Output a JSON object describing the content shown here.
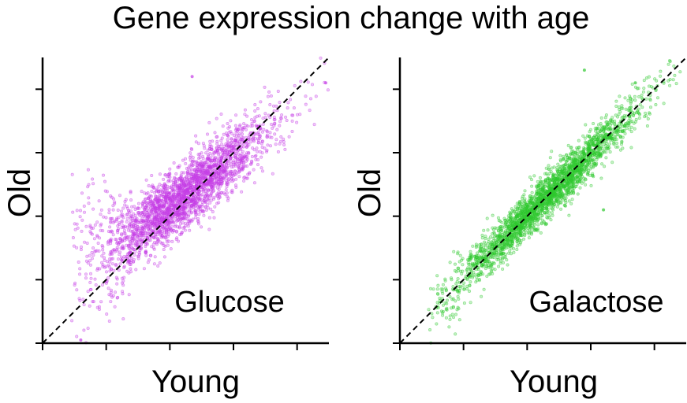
{
  "title": "Gene expression change with age",
  "chart_data": [
    {
      "type": "scatter",
      "annotation": "Glucose",
      "xlabel": "Young",
      "ylabel": "Old",
      "color": "#c43de6",
      "xlim": [
        0,
        4.5
      ],
      "ylim": [
        0,
        4.5
      ],
      "x_ticks": [
        0,
        1,
        2,
        3,
        4
      ],
      "y_ticks": [
        0,
        1,
        2,
        3,
        4
      ],
      "tick_labels_shown": false,
      "reference_line": {
        "style": "dashed",
        "color": "#000000",
        "from": [
          0,
          0
        ],
        "to": [
          4.5,
          4.5
        ]
      },
      "distribution": {
        "center": [
          2.2,
          2.3
        ],
        "y_slope": 0.78,
        "spread": 0.26,
        "low_x_scatter": "wide, above diagonal"
      },
      "outliers": [
        [
          2.35,
          4.2
        ],
        [
          4.45,
          4.1
        ],
        [
          0.6,
          0.05
        ]
      ]
    },
    {
      "type": "scatter",
      "annotation": "Galactose",
      "xlabel": "Young",
      "ylabel": "Old",
      "color": "#2fc82f",
      "xlim": [
        0,
        4.5
      ],
      "ylim": [
        0,
        4.5
      ],
      "x_ticks": [
        0,
        1,
        2,
        3,
        4
      ],
      "y_ticks": [
        0,
        1,
        2,
        3,
        4
      ],
      "tick_labels_shown": false,
      "reference_line": {
        "style": "dashed",
        "color": "#000000",
        "from": [
          0,
          0
        ],
        "to": [
          4.5,
          4.5
        ]
      },
      "distribution": {
        "center": [
          2.3,
          2.3
        ],
        "y_slope": 0.98,
        "spread": 0.17,
        "low_x_scatter": "narrow, along diagonal"
      },
      "outliers": [
        [
          2.9,
          4.3
        ],
        [
          3.7,
          4.1
        ],
        [
          3.2,
          2.1
        ]
      ]
    }
  ]
}
